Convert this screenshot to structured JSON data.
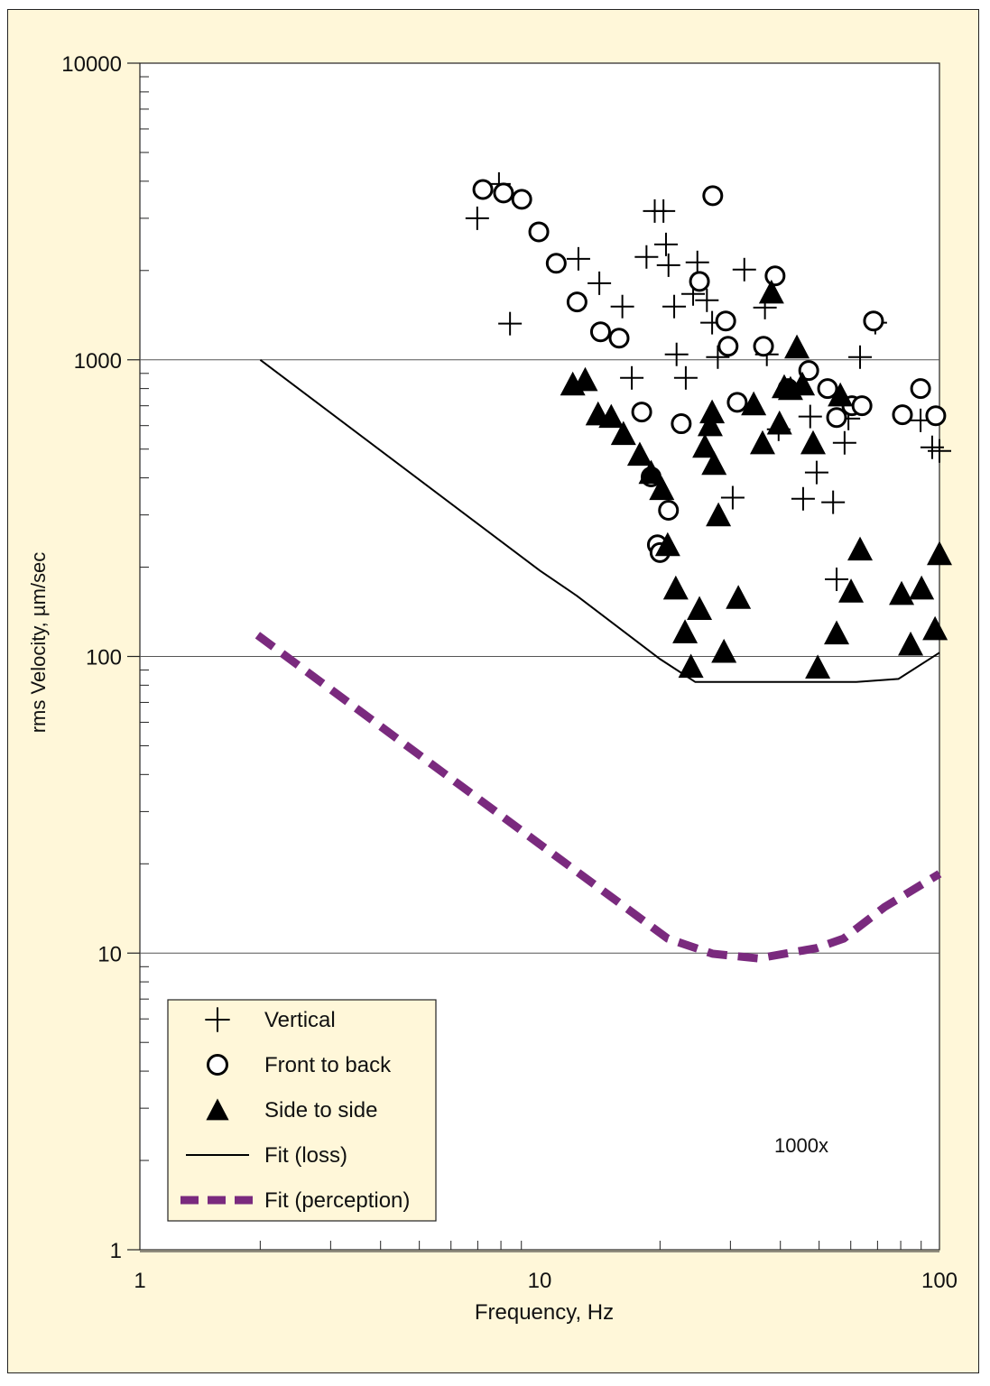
{
  "chart_data": {
    "type": "scatter",
    "xlabel": "Frequency, Hz",
    "ylabel": "rms Velocity, µm/sec",
    "xscale": "log",
    "yscale": "log",
    "xlim": [
      1,
      100
    ],
    "ylim": [
      1,
      10000
    ],
    "xticks": [
      {
        "value": 1,
        "label": "1"
      },
      {
        "value": 10,
        "label": "10"
      },
      {
        "value": 100,
        "label": "100"
      }
    ],
    "yticks": [
      {
        "value": 1,
        "label": "1"
      },
      {
        "value": 10,
        "label": "10"
      },
      {
        "value": 100,
        "label": "100"
      },
      {
        "value": 1000,
        "label": "1000"
      },
      {
        "value": 10000,
        "label": "10000"
      }
    ],
    "grid": "horizontal at decades",
    "legend_placement": "bottom-left",
    "annotation": "1000x",
    "colors": {
      "background": "#fff7d9",
      "plot": "#ffffff",
      "markers": "#000000",
      "perception": "#7a2a7e",
      "grid": "#555555"
    },
    "series": [
      {
        "name": "Vertical",
        "marker": "plus",
        "points": [
          [
            6.98,
            3000
          ],
          [
            7.91,
            3915
          ],
          [
            8.43,
            1324
          ],
          [
            12.5,
            2190
          ],
          [
            14.1,
            1812
          ],
          [
            16.1,
            1512
          ],
          [
            17.0,
            869
          ],
          [
            18.5,
            2222
          ],
          [
            19.4,
            3173
          ],
          [
            20.4,
            3173
          ],
          [
            20.7,
            2449
          ],
          [
            21.0,
            2084
          ],
          [
            21.7,
            1512
          ],
          [
            22.0,
            1043
          ],
          [
            23.2,
            869
          ],
          [
            24.8,
            2130
          ],
          [
            24.2,
            1667
          ],
          [
            26.2,
            1587
          ],
          [
            27.0,
            1334
          ],
          [
            27.9,
            1021
          ],
          [
            30.4,
            343
          ],
          [
            32.5,
            2014
          ],
          [
            36.6,
            1500
          ],
          [
            37.0,
            1043
          ],
          [
            39.6,
            583
          ],
          [
            45.6,
            340
          ],
          [
            47.5,
            644
          ],
          [
            49.3,
            417
          ],
          [
            54.2,
            331
          ],
          [
            55.3,
            182
          ],
          [
            57.9,
            525
          ],
          [
            59.2,
            634
          ],
          [
            63.3,
            1021
          ],
          [
            69.1,
            1334
          ],
          [
            89.7,
            625
          ],
          [
            95.9,
            507
          ],
          [
            100,
            493
          ]
        ]
      },
      {
        "name": "Front to back",
        "marker": "circle",
        "points": [
          [
            7.21,
            3750
          ],
          [
            8.12,
            3650
          ],
          [
            9.02,
            3475
          ],
          [
            9.95,
            2700
          ],
          [
            11.0,
            2115
          ],
          [
            12.4,
            1567
          ],
          [
            14.2,
            1243
          ],
          [
            15.8,
            1183
          ],
          [
            18.0,
            667
          ],
          [
            19.0,
            403
          ],
          [
            21.0,
            311
          ],
          [
            19.7,
            238
          ],
          [
            20.0,
            224
          ],
          [
            22.6,
            609
          ],
          [
            25.1,
            1838
          ],
          [
            27.1,
            3574
          ],
          [
            29.2,
            1352
          ],
          [
            29.6,
            1111
          ],
          [
            31.2,
            719
          ],
          [
            36.3,
            1111
          ],
          [
            38.8,
            1918
          ],
          [
            41.8,
            800
          ],
          [
            47.1,
            920
          ],
          [
            52.5,
            800
          ],
          [
            55.3,
            639
          ],
          [
            60.4,
            700
          ],
          [
            64.0,
            700
          ],
          [
            68.4,
            1352
          ],
          [
            80.8,
            653
          ],
          [
            89.7,
            800
          ],
          [
            97.9,
            648
          ]
        ]
      },
      {
        "name": "Side to side",
        "marker": "triangle",
        "points": [
          [
            12.1,
            828
          ],
          [
            13.0,
            857
          ],
          [
            14.0,
            657
          ],
          [
            15.1,
            644
          ],
          [
            16.2,
            564
          ],
          [
            17.8,
            480
          ],
          [
            19.0,
            417
          ],
          [
            20.2,
            368
          ],
          [
            20.9,
            238
          ],
          [
            21.9,
            170
          ],
          [
            23.1,
            121
          ],
          [
            25.1,
            145
          ],
          [
            23.9,
            92.6
          ],
          [
            25.9,
            511
          ],
          [
            26.7,
            604
          ],
          [
            27.3,
            447
          ],
          [
            27.0,
            667
          ],
          [
            28.0,
            300
          ],
          [
            28.9,
            104
          ],
          [
            31.4,
            158
          ],
          [
            34.3,
            710
          ],
          [
            36.1,
            525
          ],
          [
            38.0,
            1690
          ],
          [
            39.8,
            612
          ],
          [
            44.0,
            1104
          ],
          [
            42.4,
            800
          ],
          [
            45.4,
            828
          ],
          [
            48.3,
            525
          ],
          [
            49.6,
            92
          ],
          [
            55.3,
            120
          ],
          [
            56.5,
            761
          ],
          [
            60.1,
            166
          ],
          [
            63.3,
            230
          ],
          [
            80.4,
            163
          ],
          [
            84.7,
            110
          ],
          [
            90.2,
            170
          ],
          [
            97.5,
            124
          ],
          [
            100,
            222
          ],
          [
            40.9,
            811
          ]
        ]
      },
      {
        "name": "Fit (loss)",
        "marker": "line",
        "points": [
          [
            2,
            1000
          ],
          [
            10,
            195
          ],
          [
            12.4,
            160
          ],
          [
            20,
            98
          ],
          [
            24.5,
            82
          ],
          [
            62,
            82
          ],
          [
            79,
            84
          ],
          [
            100,
            103
          ]
        ]
      },
      {
        "name": "Fit (perception)",
        "marker": "dashed",
        "points": [
          [
            1.97,
            118
          ],
          [
            10,
            23.3
          ],
          [
            20.9,
            11.2
          ],
          [
            27.1,
            9.95
          ],
          [
            35.2,
            9.6
          ],
          [
            49.3,
            10.4
          ],
          [
            57.6,
            11.2
          ],
          [
            72.9,
            14.3
          ],
          [
            100,
            18.5
          ]
        ]
      }
    ]
  }
}
